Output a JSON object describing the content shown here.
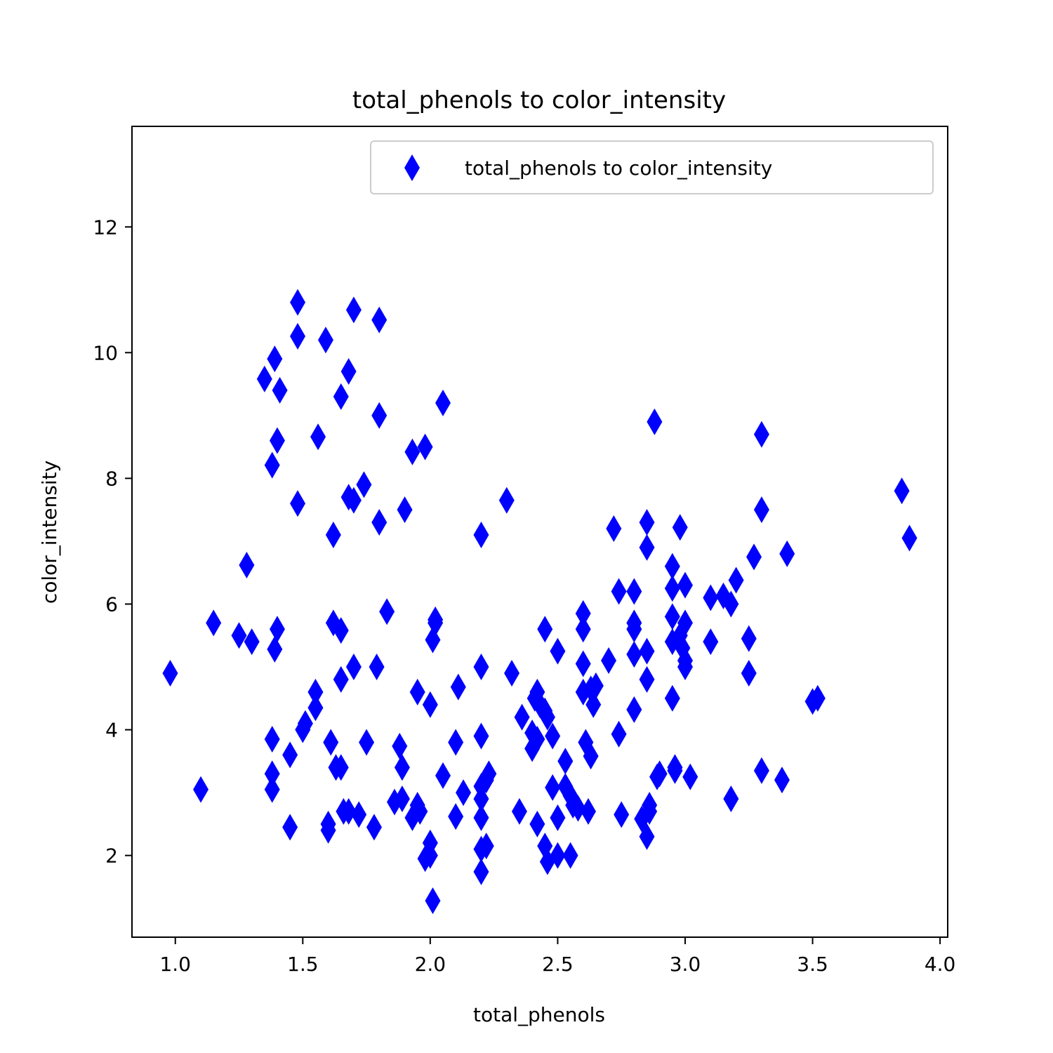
{
  "chart_data": {
    "type": "scatter",
    "title": "total_phenols to color_intensity",
    "xlabel": "total_phenols",
    "ylabel": "color_intensity",
    "xlim": [
      0.83,
      4.03
    ],
    "ylim": [
      0.7,
      13.6
    ],
    "xticks": [
      1.0,
      1.5,
      2.0,
      2.5,
      3.0,
      3.5,
      4.0
    ],
    "xtick_labels": [
      "1.0",
      "1.5",
      "2.0",
      "2.5",
      "3.0",
      "3.5",
      "4.0"
    ],
    "yticks": [
      2,
      4,
      6,
      8,
      10,
      12
    ],
    "ytick_labels": [
      "2",
      "4",
      "6",
      "8",
      "10",
      "12"
    ],
    "grid": false,
    "legend": {
      "position": "top-right",
      "label": "total_phenols to color_intensity"
    },
    "marker": "thin-diamond",
    "color": "#0000ff",
    "series": [
      {
        "name": "total_phenols to color_intensity",
        "x": [
          0.98,
          1.1,
          1.15,
          1.25,
          1.28,
          1.3,
          1.35,
          1.38,
          1.38,
          1.38,
          1.38,
          1.39,
          1.39,
          1.4,
          1.4,
          1.41,
          1.45,
          1.45,
          1.48,
          1.48,
          1.48,
          1.5,
          1.51,
          1.55,
          1.55,
          1.56,
          1.59,
          1.6,
          1.6,
          1.61,
          1.62,
          1.62,
          1.63,
          1.65,
          1.65,
          1.65,
          1.65,
          1.66,
          1.68,
          1.68,
          1.68,
          1.7,
          1.7,
          1.7,
          1.72,
          1.74,
          1.75,
          1.78,
          1.79,
          1.8,
          1.8,
          1.8,
          1.83,
          1.86,
          1.88,
          1.89,
          1.89,
          1.9,
          1.93,
          1.93,
          1.95,
          1.95,
          1.96,
          1.98,
          1.98,
          2.0,
          2.0,
          2.0,
          2.01,
          2.01,
          2.02,
          2.02,
          2.05,
          2.05,
          2.1,
          2.1,
          2.11,
          2.13,
          2.2,
          2.2,
          2.2,
          2.2,
          2.2,
          2.2,
          2.2,
          2.2,
          2.22,
          2.22,
          2.23,
          2.3,
          2.32,
          2.35,
          2.36,
          2.4,
          2.4,
          2.41,
          2.42,
          2.42,
          2.42,
          2.43,
          2.45,
          2.45,
          2.45,
          2.46,
          2.46,
          2.48,
          2.48,
          2.5,
          2.5,
          2.5,
          2.53,
          2.53,
          2.55,
          2.55,
          2.56,
          2.58,
          2.6,
          2.6,
          2.6,
          2.6,
          2.61,
          2.62,
          2.63,
          2.63,
          2.64,
          2.65,
          2.7,
          2.72,
          2.74,
          2.74,
          2.75,
          2.8,
          2.8,
          2.8,
          2.8,
          2.8,
          2.83,
          2.85,
          2.85,
          2.85,
          2.85,
          2.85,
          2.86,
          2.86,
          2.88,
          2.89,
          2.9,
          2.95,
          2.95,
          2.95,
          2.95,
          2.95,
          2.96,
          2.96,
          2.98,
          2.98,
          2.99,
          3.0,
          3.0,
          3.0,
          3.0,
          3.02,
          3.1,
          3.1,
          3.15,
          3.18,
          3.18,
          3.2,
          3.25,
          3.25,
          3.27,
          3.3,
          3.3,
          3.3,
          3.38,
          3.4,
          3.5,
          3.52,
          3.85,
          3.88
        ],
        "y": [
          4.9,
          3.05,
          5.7,
          5.5,
          6.62,
          5.4,
          9.58,
          8.21,
          3.85,
          3.3,
          3.05,
          9.9,
          5.28,
          8.6,
          5.6,
          9.4,
          3.6,
          2.45,
          10.8,
          10.26,
          7.6,
          4.0,
          4.1,
          4.6,
          4.35,
          8.66,
          10.2,
          2.5,
          2.4,
          3.8,
          7.1,
          5.7,
          3.4,
          9.3,
          5.58,
          4.8,
          3.4,
          2.7,
          9.7,
          7.7,
          2.7,
          10.68,
          7.65,
          5.0,
          2.65,
          7.9,
          3.8,
          2.45,
          5.0,
          9.0,
          7.3,
          10.52,
          5.88,
          2.85,
          3.74,
          2.9,
          3.4,
          7.5,
          8.42,
          2.6,
          2.8,
          4.6,
          2.7,
          8.5,
          1.95,
          4.4,
          2.2,
          2.0,
          5.43,
          1.28,
          5.75,
          5.7,
          9.2,
          3.27,
          3.8,
          2.62,
          4.68,
          3.0,
          7.1,
          5.0,
          3.9,
          3.1,
          2.9,
          2.6,
          2.1,
          1.74,
          3.2,
          2.15,
          3.3,
          7.65,
          4.9,
          2.7,
          4.2,
          3.7,
          3.95,
          4.5,
          4.6,
          3.85,
          2.5,
          4.4,
          5.6,
          4.3,
          2.15,
          4.2,
          1.9,
          3.9,
          3.08,
          5.25,
          2.6,
          2.0,
          3.5,
          3.1,
          2.0,
          2.95,
          2.8,
          2.75,
          5.85,
          5.6,
          5.05,
          4.6,
          3.8,
          2.7,
          4.65,
          3.58,
          4.4,
          4.7,
          5.1,
          7.2,
          6.2,
          3.93,
          2.65,
          6.2,
          5.7,
          5.6,
          5.2,
          4.32,
          2.58,
          7.3,
          6.9,
          5.25,
          4.8,
          2.3,
          2.7,
          2.8,
          8.9,
          3.25,
          3.3,
          6.6,
          6.25,
          5.8,
          5.4,
          4.5,
          3.4,
          3.35,
          7.22,
          5.5,
          5.3,
          6.3,
          5.7,
          5.1,
          5.0,
          3.25,
          6.1,
          5.4,
          6.13,
          6.0,
          2.9,
          6.38,
          5.45,
          4.9,
          6.75,
          8.7,
          7.5,
          3.35,
          3.2,
          6.8,
          4.45,
          4.5,
          7.8,
          7.05
        ]
      }
    ]
  }
}
